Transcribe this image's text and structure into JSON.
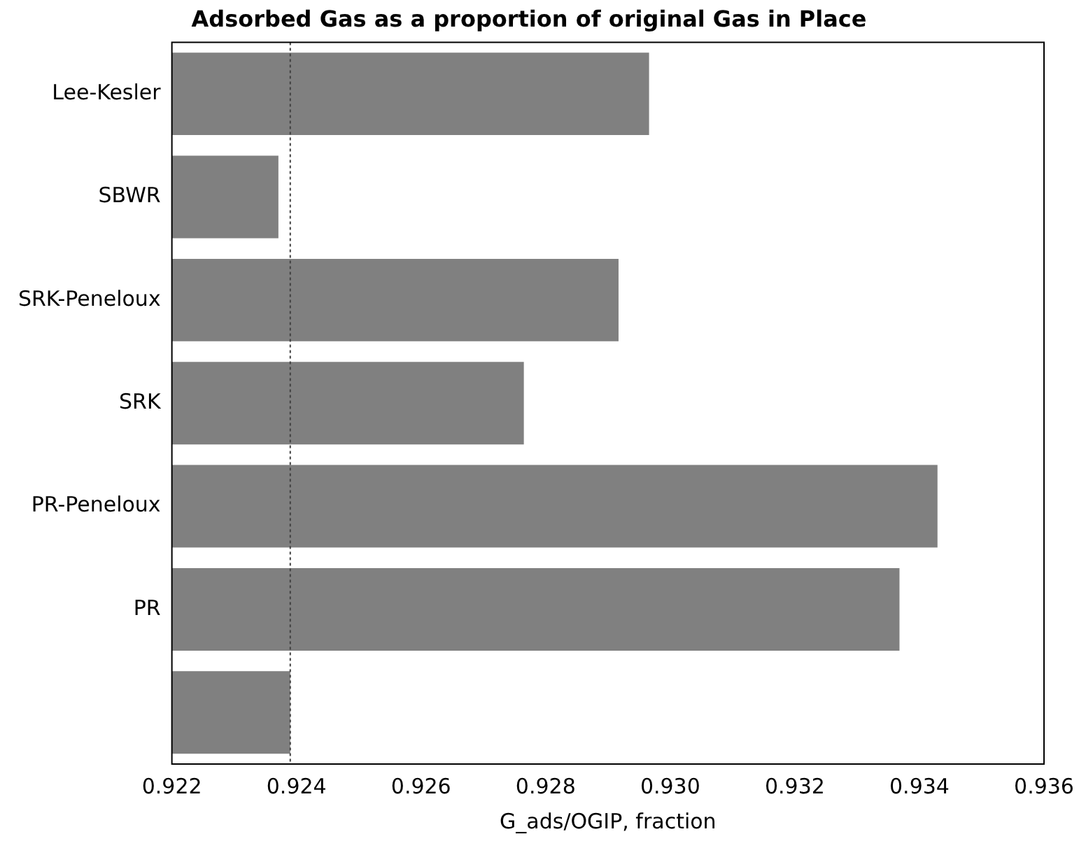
{
  "chart_data": {
    "type": "bar",
    "orientation": "horizontal",
    "title": "Adsorbed Gas as a proportion of original Gas in Place",
    "xlabel": "G_ads/OGIP, fraction",
    "categories": [
      "Lee-Kesler",
      "SBWR",
      "SRK-Peneloux",
      "SRK",
      "PR-Peneloux",
      "PR",
      null
    ],
    "values": [
      0.92966,
      0.92371,
      0.92917,
      0.92765,
      0.93429,
      0.93368,
      0.9239
    ],
    "color": "#808080",
    "xlim": [
      0.922,
      0.936
    ],
    "xticks": [
      0.922,
      0.924,
      0.926,
      0.928,
      {
        "value": 0.93,
        "label": "0.930"
      },
      0.932,
      0.934,
      0.936
    ],
    "ref_lines": [
      {
        "axis": "x",
        "value": 0.9239,
        "color": "#404040",
        "line_style": "dotted"
      }
    ],
    "grid": false,
    "legend": false
  }
}
